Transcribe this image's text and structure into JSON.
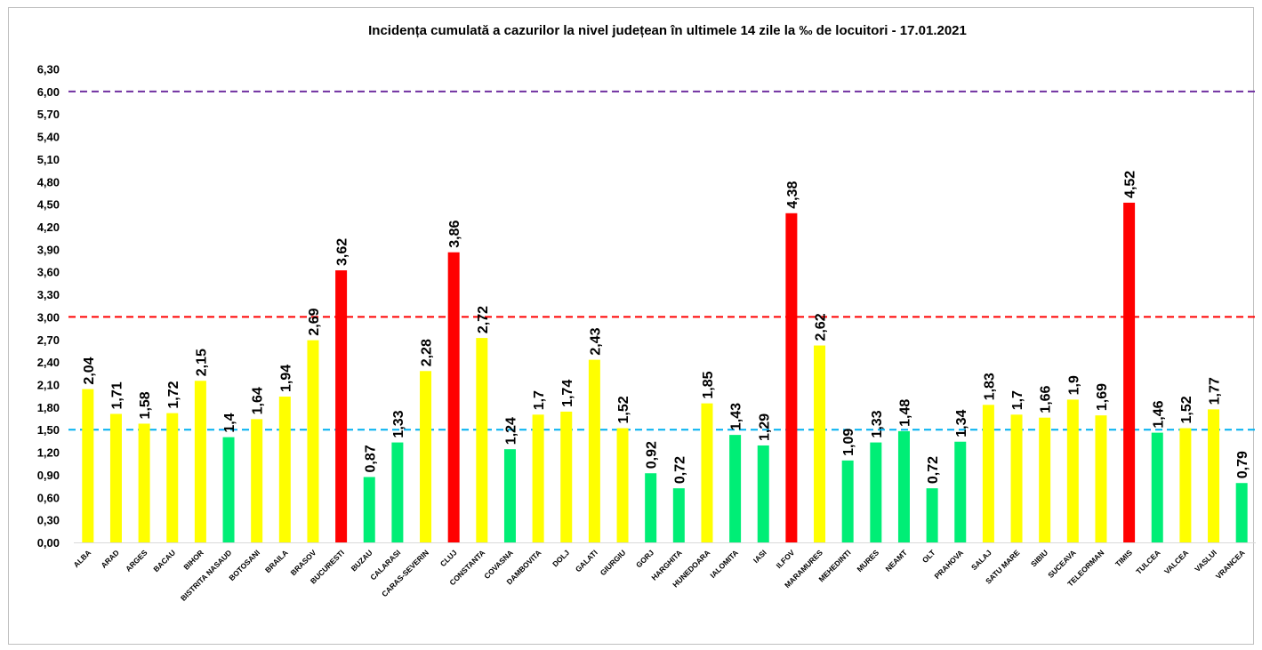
{
  "chart_data": {
    "type": "bar",
    "title": "Incidența cumulată a cazurilor la nivel județean în ultimele 14 zile la ‰ de locuitori - 17.01.2021",
    "xlabel": "",
    "ylabel": "",
    "ylim": [
      0,
      6.3
    ],
    "yticks": [
      "0,00",
      "0,30",
      "0,60",
      "0,90",
      "1,20",
      "1,50",
      "1,80",
      "2,10",
      "2,40",
      "2,70",
      "3,00",
      "3,30",
      "3,60",
      "3,90",
      "4,20",
      "4,50",
      "4,80",
      "5,10",
      "5,40",
      "5,70",
      "6,00",
      "6,30"
    ],
    "grid": false,
    "legend": "none",
    "categories": [
      "ALBA",
      "ARAD",
      "ARGES",
      "BACAU",
      "BIHOR",
      "BISTRITA NASAUD",
      "BOTOSANI",
      "BRAILA",
      "BRASOV",
      "BUCURESTI",
      "BUZAU",
      "CALARASI",
      "CARAS-SEVERIN",
      "CLUJ",
      "CONSTANTA",
      "COVASNA",
      "DAMBOVITA",
      "DOLJ",
      "GALATI",
      "GIURGIU",
      "GORJ",
      "HARGHITA",
      "HUNEDOARA",
      "IALOMITA",
      "IASI",
      "ILFOV",
      "MARAMURES",
      "MEHEDINTI",
      "MURES",
      "NEAMT",
      "OLT",
      "PRAHOVA",
      "SALAJ",
      "SATU MARE",
      "SIBIU",
      "SUCEAVA",
      "TELEORMAN",
      "TIMIS",
      "TULCEA",
      "VALCEA",
      "VASLUI",
      "VRANCEA"
    ],
    "values": [
      2.04,
      1.71,
      1.58,
      1.72,
      2.15,
      1.4,
      1.64,
      1.94,
      2.69,
      3.62,
      0.87,
      1.33,
      2.28,
      3.86,
      2.72,
      1.24,
      1.7,
      1.74,
      2.43,
      1.52,
      0.92,
      0.72,
      1.85,
      1.43,
      1.29,
      4.38,
      2.62,
      1.09,
      1.33,
      1.48,
      0.72,
      1.34,
      1.83,
      1.7,
      1.66,
      1.9,
      1.69,
      4.52,
      1.46,
      1.52,
      1.77,
      0.79
    ],
    "value_labels": [
      "2,04",
      "1,71",
      "1,58",
      "1,72",
      "2,15",
      "1,4",
      "1,64",
      "1,94",
      "2,69",
      "3,62",
      "0,87",
      "1,33",
      "2,28",
      "3,86",
      "2,72",
      "1,24",
      "1,7",
      "1,74",
      "2,43",
      "1,52",
      "0,92",
      "0,72",
      "1,85",
      "1,43",
      "1,29",
      "4,38",
      "2,62",
      "1,09",
      "1,33",
      "1,48",
      "0,72",
      "1,34",
      "1,83",
      "1,7",
      "1,66",
      "1,9",
      "1,69",
      "4,52",
      "1,46",
      "1,52",
      "1,77",
      "0,79"
    ],
    "bar_colors": {
      "green": "#00ee76",
      "yellow": "#ffff00",
      "red": "#ff0000"
    },
    "bar_color_keys": [
      "yellow",
      "yellow",
      "yellow",
      "yellow",
      "yellow",
      "green",
      "yellow",
      "yellow",
      "yellow",
      "red",
      "green",
      "green",
      "yellow",
      "red",
      "yellow",
      "green",
      "yellow",
      "yellow",
      "yellow",
      "yellow",
      "green",
      "green",
      "yellow",
      "green",
      "green",
      "red",
      "yellow",
      "green",
      "green",
      "green",
      "green",
      "green",
      "yellow",
      "yellow",
      "yellow",
      "yellow",
      "yellow",
      "red",
      "green",
      "yellow",
      "yellow",
      "green"
    ],
    "reference_lines": [
      {
        "value": 6.0,
        "color": "#7030a0"
      },
      {
        "value": 3.0,
        "color": "#ff0000"
      },
      {
        "value": 1.5,
        "color": "#00b0f0"
      }
    ]
  }
}
